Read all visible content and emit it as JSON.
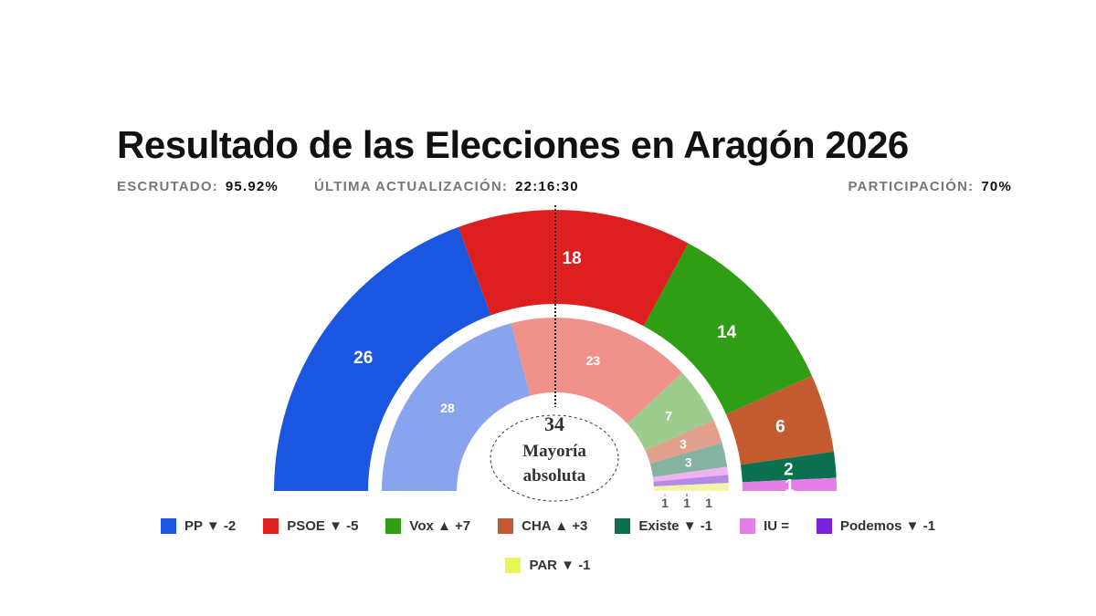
{
  "chart_data": {
    "type": "hemicycle",
    "title": "Resultado de las Elecciones en Aragón 2026",
    "total_seats": 67,
    "majority": {
      "value": "34",
      "label_line1": "Mayoría",
      "label_line2": "absoluta"
    },
    "parties": [
      {
        "name": "PP",
        "seats": 26,
        "previous": 28,
        "change": "▼ -2",
        "color": "#1a56e0",
        "prev_color": "#88a4ee"
      },
      {
        "name": "PSOE",
        "seats": 18,
        "previous": 23,
        "change": "▼ -5",
        "color": "#dd1f1f",
        "prev_color": "#f0918c"
      },
      {
        "name": "Vox",
        "seats": 14,
        "previous": 7,
        "change": "▲ +7",
        "color": "#2f9e14",
        "prev_color": "#9dcc8c"
      },
      {
        "name": "CHA",
        "seats": 6,
        "previous": 3,
        "change": "▲ +3",
        "color": "#c35a30",
        "prev_color": "#e0a08c"
      },
      {
        "name": "Existe",
        "seats": 2,
        "previous": 3,
        "change": "▼ -1",
        "color": "#0a7050",
        "prev_color": "#84b3a2"
      },
      {
        "name": "IU",
        "seats": 1,
        "previous": 1,
        "change": "=",
        "color": "#e67ee8",
        "prev_color": "#f0b3f0"
      },
      {
        "name": "Podemos",
        "seats": 0,
        "previous": 1,
        "change": "▼ -1",
        "color": "#7b22d8",
        "prev_color": "#b48ae8"
      },
      {
        "name": "PAR",
        "seats": 0,
        "previous": 1,
        "change": "▼ -1",
        "color": "#eaf55a",
        "prev_color": "#f2f5a8"
      }
    ]
  },
  "meta": {
    "escrutado_label": "ESCRUTADO:",
    "escrutado_value": "95.92%",
    "update_label": "ÚLTIMA ACTUALIZACIÓN:",
    "update_value": "22:16:30",
    "participacion_label": "PARTICIPACIÓN:",
    "participacion_value": "70%"
  }
}
